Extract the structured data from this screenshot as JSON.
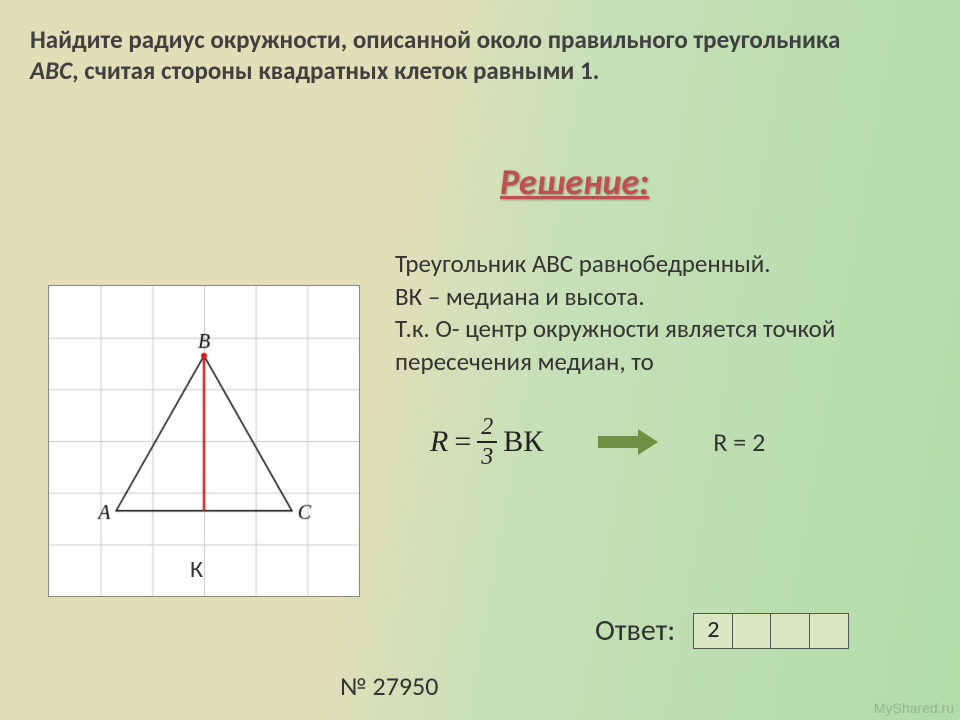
{
  "problem": {
    "line1": "Найдите радиус окружности, описанной около правильного треугольника",
    "line2_prefix": "ABC",
    "line2_rest": ", считая стороны квадратных клеток равными 1."
  },
  "solution": {
    "heading": "Решение:",
    "line1": "Треугольник АВС равнобедренный.",
    "line2": "ВК – медиана и высота.",
    "line3": "Т.к. О- центр окружности является точкой пересечения медиан, то"
  },
  "formula": {
    "R": "R",
    "eq": "=",
    "num": "2",
    "den": "3",
    "tail": "ВК"
  },
  "result": "R = 2",
  "answer": {
    "label": "Ответ:",
    "cells": [
      "2",
      "",
      "",
      ""
    ]
  },
  "task_number": "№ 27950",
  "figure": {
    "grid_n": 6,
    "labels": {
      "A": "A",
      "B": "B",
      "C": "C",
      "K": "К"
    },
    "A": [
      1.3,
      4.35
    ],
    "B": [
      3.0,
      1.35
    ],
    "C": [
      4.7,
      4.35
    ],
    "K": [
      3.0,
      4.35
    ],
    "frame_color": "#888888",
    "grid_color": "#c9c9c9",
    "triangle_color": "#000000",
    "median_color": "#d02020",
    "label_font": "italic 20px 'Times New Roman', serif"
  },
  "colors": {
    "heading": "#c0504d",
    "arrow": "#6f8f42",
    "box_border": "#555555",
    "box_bg": "#d9e6c3"
  },
  "watermark": "MyShared.ru"
}
